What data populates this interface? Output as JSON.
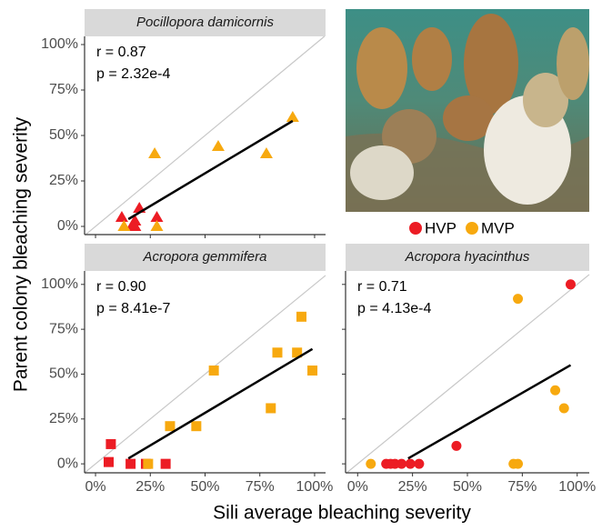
{
  "xlabel": "Sili average bleaching severity",
  "ylabel": "Parent colony bleaching severity",
  "chart_data": [
    {
      "type": "scatter",
      "title": "Pocillopora damicornis",
      "marker": "triangle",
      "annotations": [
        "r = 0.87",
        "p = 2.32e-4"
      ],
      "xlim": [
        -5,
        105
      ],
      "ylim": [
        -4.5,
        104.5
      ],
      "xticks": [
        {
          "value": 0,
          "label": "0%"
        },
        {
          "value": 25,
          "label": "25%"
        },
        {
          "value": 50,
          "label": "50%"
        },
        {
          "value": 75,
          "label": "75%"
        },
        {
          "value": 100,
          "label": "100%"
        }
      ],
      "yticks": [
        {
          "value": 0,
          "label": "0%"
        },
        {
          "value": 25,
          "label": "25%"
        },
        {
          "value": 50,
          "label": "50%"
        },
        {
          "value": 75,
          "label": "75%"
        },
        {
          "value": 100,
          "label": "100%"
        }
      ],
      "xtick_labels": false,
      "ytick_labels": true,
      "series": [
        {
          "name": "HVP",
          "color": "#ec1c24",
          "x": [
            12,
            17,
            18,
            20,
            28,
            18
          ],
          "values": [
            5,
            1,
            0,
            10,
            5,
            3
          ]
        },
        {
          "name": "MVP",
          "color": "#f7a90f",
          "x": [
            13,
            27,
            28,
            56,
            78,
            90
          ],
          "values": [
            0,
            40,
            0,
            44,
            40,
            60
          ]
        }
      ],
      "fit": {
        "x": [
          15,
          90
        ],
        "y": [
          4,
          58
        ]
      }
    },
    {
      "type": "scatter",
      "title": "Acropora gemmifera",
      "marker": "square",
      "annotations": [
        "r = 0.90",
        "p = 8.41e-7"
      ],
      "xlim": [
        -5,
        105
      ],
      "ylim": [
        -5,
        107.5
      ],
      "xticks": [
        {
          "value": 0,
          "label": "0%"
        },
        {
          "value": 25,
          "label": "25%"
        },
        {
          "value": 50,
          "label": "50%"
        },
        {
          "value": 75,
          "label": "75%"
        },
        {
          "value": 100,
          "label": "100%"
        }
      ],
      "yticks": [
        {
          "value": 0,
          "label": "0%"
        },
        {
          "value": 25,
          "label": "25%"
        },
        {
          "value": 50,
          "label": "50%"
        },
        {
          "value": 75,
          "label": "75%"
        },
        {
          "value": 100,
          "label": "100%"
        }
      ],
      "xtick_labels": true,
      "ytick_labels": true,
      "series": [
        {
          "name": "HVP",
          "color": "#ec1c24",
          "x": [
            7,
            6,
            16,
            23,
            32
          ],
          "values": [
            11,
            1,
            0,
            0,
            0
          ]
        },
        {
          "name": "MVP",
          "color": "#f7a90f",
          "x": [
            24,
            34,
            46,
            54,
            80,
            83,
            92,
            94,
            99
          ],
          "values": [
            0,
            21,
            21,
            52,
            31,
            62,
            62,
            82,
            52
          ]
        }
      ],
      "fit": {
        "x": [
          15,
          99
        ],
        "y": [
          3,
          64
        ]
      }
    },
    {
      "type": "scatter",
      "title": "Acropora hyacinthus",
      "marker": "circle",
      "annotations": [
        "r = 0.71",
        "p = 4.13e-4"
      ],
      "xlim": [
        -5.5,
        105.5
      ],
      "ylim": [
        -5,
        107.5
      ],
      "xticks": [
        {
          "value": 0,
          "label": "0%"
        },
        {
          "value": 25,
          "label": "25%"
        },
        {
          "value": 50,
          "label": "50%"
        },
        {
          "value": 75,
          "label": "75%"
        },
        {
          "value": 100,
          "label": "100%"
        }
      ],
      "yticks": [
        {
          "value": 0,
          "label": "0%"
        },
        {
          "value": 25,
          "label": "25%"
        },
        {
          "value": 50,
          "label": "50%"
        },
        {
          "value": 75,
          "label": "75%"
        },
        {
          "value": 100,
          "label": "100%"
        }
      ],
      "xtick_labels": true,
      "ytick_labels": false,
      "series": [
        {
          "name": "HVP",
          "color": "#ec1c24",
          "x": [
            13,
            15,
            17,
            20,
            24,
            28,
            45,
            97
          ],
          "values": [
            0,
            0,
            0,
            0,
            0,
            0,
            10,
            100
          ]
        },
        {
          "name": "MVP",
          "color": "#f7a90f",
          "x": [
            6,
            71,
            73,
            73,
            90,
            94
          ],
          "values": [
            0,
            0,
            0,
            92,
            41,
            31
          ]
        }
      ],
      "fit": {
        "x": [
          23,
          97
        ],
        "y": [
          3,
          55
        ]
      }
    }
  ]
}
